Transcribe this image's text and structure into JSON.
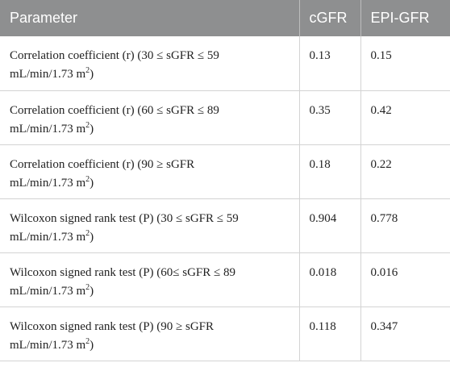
{
  "table": {
    "header": [
      "Parameter",
      "cGFR",
      "EPI-GFR"
    ],
    "rows": [
      {
        "parameter": {
          "text": "Correlation coefficient (r) (30 ≤ sGFR ≤ 59 mL/min/1.73 m",
          "sup": "2",
          "after": ")"
        },
        "cgfr": "0.13",
        "epi": "0.15"
      },
      {
        "parameter": {
          "text": "Correlation coefficient (r) (60 ≤ sGFR ≤ 89 mL/min/1.73 m",
          "sup": "2",
          "after": ")"
        },
        "cgfr": "0.35",
        "epi": "0.42"
      },
      {
        "parameter": {
          "text": "Correlation coefficient (r) (90 ≥ sGFR mL/min/1.73 m",
          "sup": "2",
          "after": ")"
        },
        "cgfr": "0.18",
        "epi": "0.22"
      },
      {
        "parameter": {
          "text": "Wilcoxon signed rank test (P) (30 ≤ sGFR ≤ 59 mL/min/1.73 m",
          "sup": "2",
          "after": ")"
        },
        "cgfr": "0.904",
        "epi": "0.778"
      },
      {
        "parameter": {
          "text": "Wilcoxon signed rank test (P) (60≤ sGFR ≤ 89 mL/min/1.73 m",
          "sup": "2",
          "after": ")"
        },
        "cgfr": "0.018",
        "epi": "0.016"
      },
      {
        "parameter": {
          "text": "Wilcoxon signed rank test (P) (90 ≥ sGFR mL/min/1.73 m",
          "sup": "2",
          "after": ")"
        },
        "cgfr": "0.118",
        "epi": "0.347"
      }
    ]
  }
}
